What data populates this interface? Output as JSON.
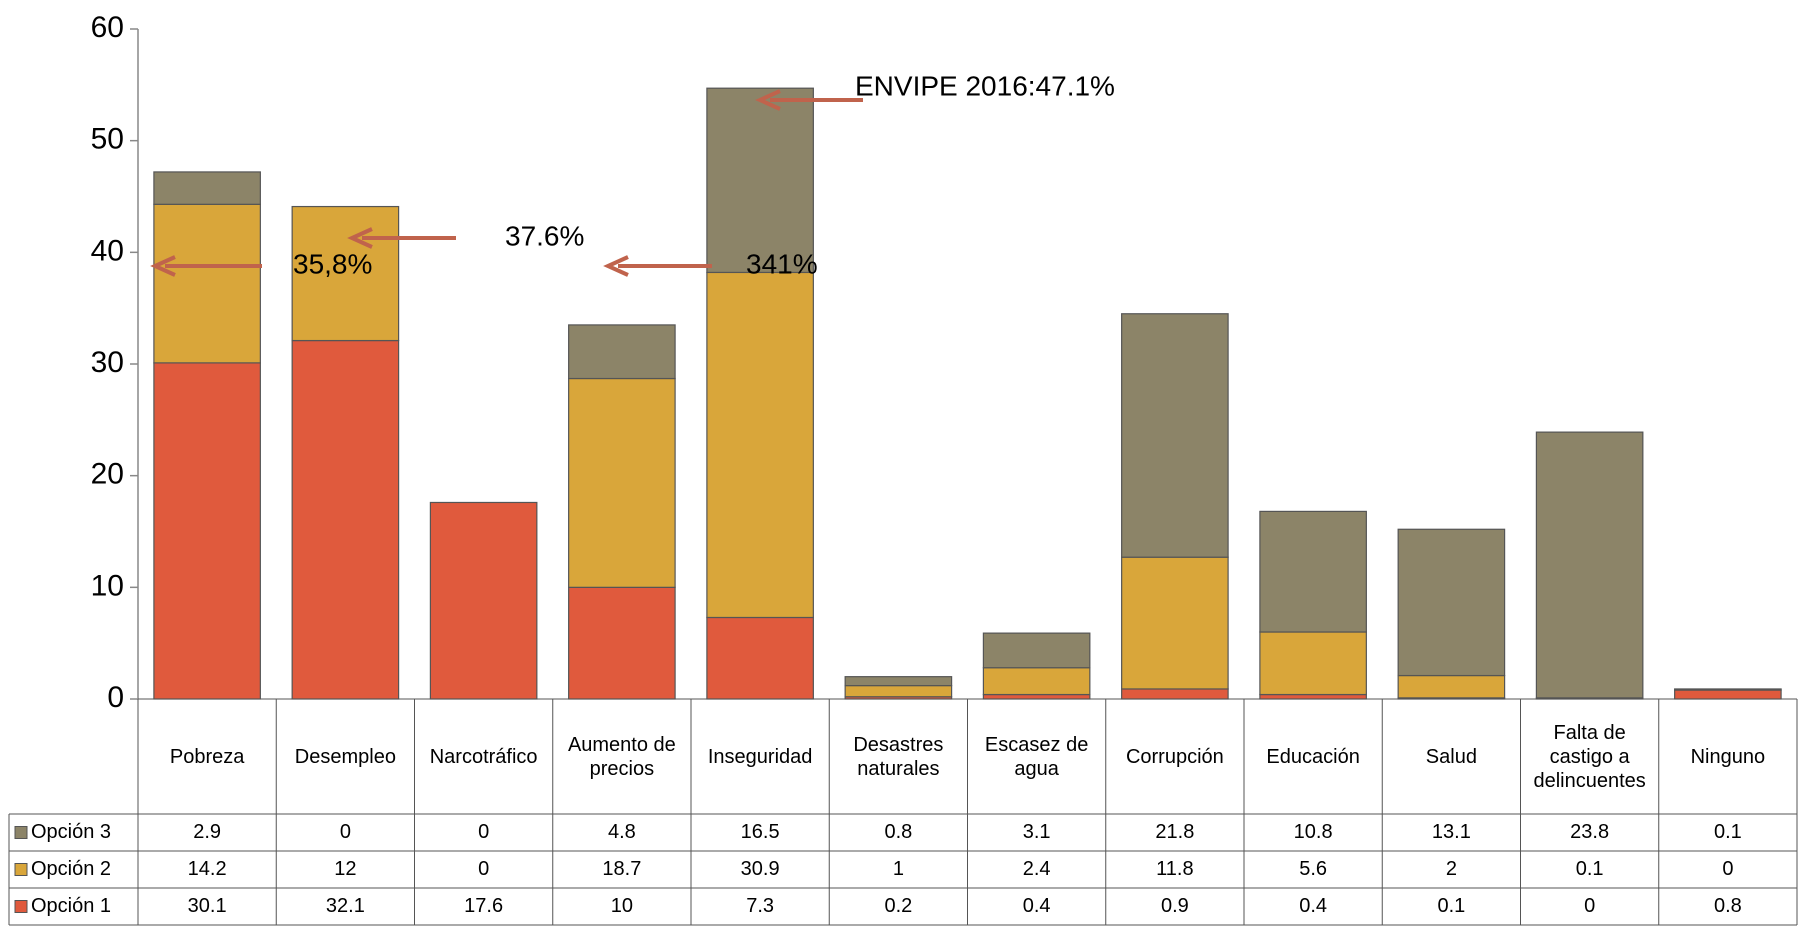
{
  "chart_data": {
    "type": "stacked_bar",
    "categories": [
      "Pobreza",
      "Desempleo",
      "Narcotráfico",
      "Aumento de precios",
      "Inseguridad",
      "Desastres naturales",
      "Escasez de agua",
      "Corrupción",
      "Educación",
      "Salud",
      "Falta de castigo a delincuentes",
      "Ninguno"
    ],
    "series": [
      {
        "name": "Opción 1",
        "color": "#e05a3d",
        "values": [
          30.1,
          32.1,
          17.6,
          10,
          7.3,
          0.2,
          0.4,
          0.9,
          0.4,
          0.1,
          0,
          0.8
        ]
      },
      {
        "name": "Opción 2",
        "color": "#d9a63a",
        "values": [
          14.2,
          12,
          0,
          18.7,
          30.9,
          1,
          2.4,
          11.8,
          5.6,
          2,
          0.1,
          0
        ]
      },
      {
        "name": "Opción 3",
        "color": "#8c8468",
        "values": [
          2.9,
          0,
          0,
          4.8,
          16.5,
          0.8,
          3.1,
          21.8,
          10.8,
          13.1,
          23.8,
          0.1
        ]
      }
    ],
    "ylim": [
      0,
      60
    ],
    "yticks": [
      0,
      10,
      20,
      30,
      40,
      50,
      60
    ],
    "annotations": [
      "ENVIPE 2016:47.1%",
      "37.6%",
      "35,8%",
      "341%"
    ]
  }
}
